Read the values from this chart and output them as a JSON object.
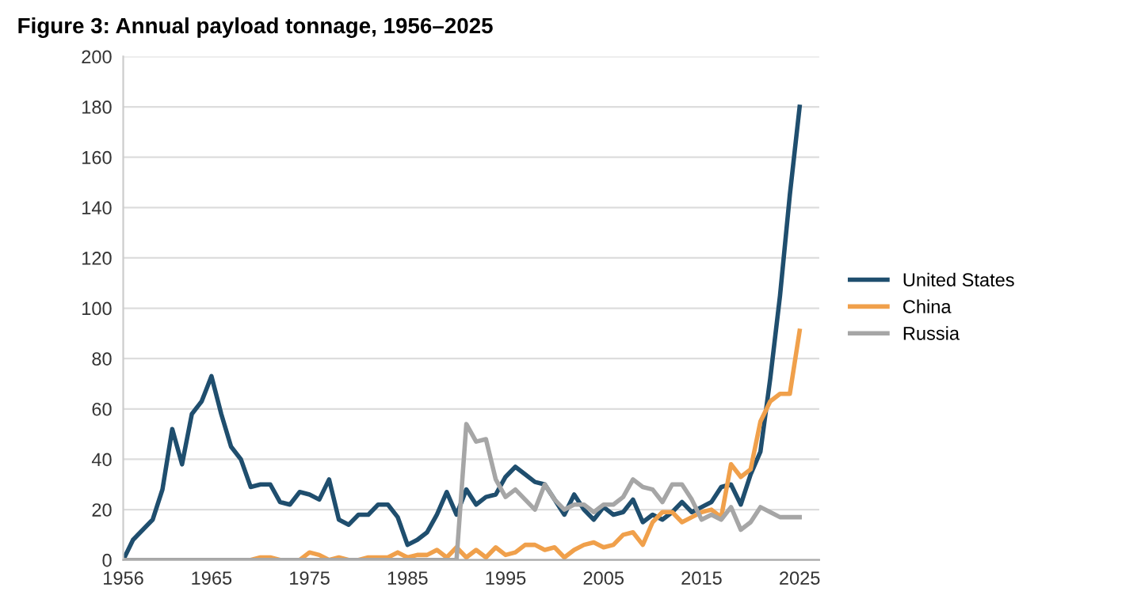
{
  "chart_data": {
    "type": "line",
    "title": "Figure 3: Annual payload tonnage, 1956–2025",
    "x": [
      1956,
      1957,
      1958,
      1959,
      1960,
      1961,
      1962,
      1963,
      1964,
      1965,
      1966,
      1967,
      1968,
      1969,
      1970,
      1971,
      1972,
      1973,
      1974,
      1975,
      1976,
      1977,
      1978,
      1979,
      1980,
      1981,
      1982,
      1983,
      1984,
      1985,
      1986,
      1987,
      1988,
      1989,
      1990,
      1991,
      1992,
      1993,
      1994,
      1995,
      1996,
      1997,
      1998,
      1999,
      2000,
      2001,
      2002,
      2003,
      2004,
      2005,
      2006,
      2007,
      2008,
      2009,
      2010,
      2011,
      2012,
      2013,
      2014,
      2015,
      2016,
      2017,
      2018,
      2019,
      2020,
      2021,
      2022,
      2023,
      2024,
      2025
    ],
    "series": [
      {
        "name": "United States",
        "color": "#1f4e6e",
        "values": [
          0,
          8,
          12,
          16,
          28,
          52,
          38,
          58,
          63,
          73,
          58,
          45,
          40,
          29,
          30,
          30,
          23,
          22,
          27,
          26,
          24,
          32,
          16,
          14,
          18,
          18,
          22,
          22,
          17,
          6,
          8,
          11,
          18,
          27,
          18,
          28,
          22,
          25,
          26,
          33,
          37,
          34,
          31,
          30,
          24,
          18,
          26,
          20,
          16,
          21,
          18,
          19,
          24,
          15,
          18,
          16,
          19,
          23,
          19,
          21,
          23,
          29,
          30,
          22,
          34,
          43,
          72,
          105,
          145,
          180
        ]
      },
      {
        "name": "China",
        "color": "#f0a04b",
        "values": [
          null,
          null,
          null,
          null,
          null,
          null,
          null,
          null,
          null,
          null,
          null,
          null,
          null,
          0,
          1,
          1,
          0,
          0,
          0,
          3,
          2,
          0,
          1,
          0,
          0,
          1,
          1,
          1,
          3,
          1,
          2,
          2,
          4,
          1,
          5,
          1,
          4,
          1,
          5,
          2,
          3,
          6,
          6,
          4,
          5,
          1,
          4,
          6,
          7,
          5,
          6,
          10,
          11,
          6,
          15,
          19,
          19,
          15,
          17,
          19,
          20,
          17,
          38,
          33,
          36,
          55,
          63,
          66,
          66,
          91
        ]
      },
      {
        "name": "Russia",
        "color": "#a6a6a6",
        "values": [
          0,
          0,
          0,
          0,
          0,
          0,
          0,
          0,
          0,
          0,
          0,
          0,
          0,
          0,
          0,
          0,
          0,
          0,
          0,
          0,
          0,
          0,
          0,
          0,
          0,
          0,
          0,
          0,
          0,
          0,
          0,
          0,
          0,
          0,
          0,
          54,
          47,
          48,
          32,
          25,
          28,
          24,
          20,
          30,
          24,
          20,
          22,
          22,
          19,
          22,
          22,
          25,
          32,
          29,
          28,
          23,
          30,
          30,
          24,
          16,
          18,
          16,
          21,
          12,
          15,
          21,
          19,
          17,
          17,
          17
        ]
      }
    ],
    "xlim": [
      1956,
      2027
    ],
    "xticks": [
      1956,
      1965,
      1975,
      1985,
      1995,
      2005,
      2015,
      2025
    ],
    "ylim": [
      0,
      200
    ],
    "yticks": [
      0,
      20,
      40,
      60,
      80,
      100,
      120,
      140,
      160,
      180,
      200
    ],
    "grid": "y",
    "legend": "right",
    "marker": "none",
    "line_style": "solid"
  }
}
